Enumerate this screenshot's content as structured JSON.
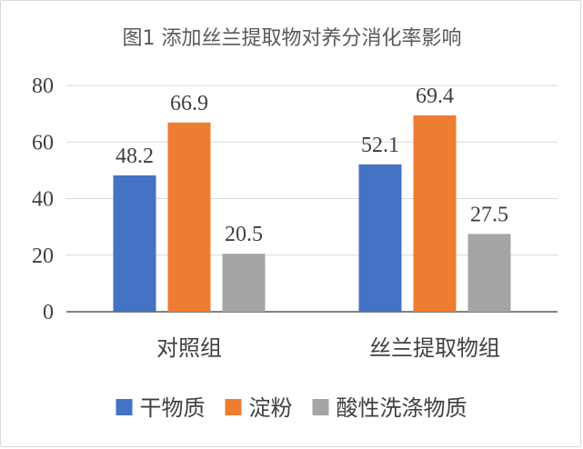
{
  "chart_data": {
    "type": "bar",
    "title": "图1 添加丝兰提取物对养分消化率影响",
    "categories": [
      "对照组",
      "丝兰提取物组"
    ],
    "series": [
      {
        "name": "干物质",
        "values": [
          48.2,
          52.1
        ],
        "color": "#4472C4"
      },
      {
        "name": "淀粉",
        "values": [
          66.9,
          69.4
        ],
        "color": "#ED7D31"
      },
      {
        "name": "酸性洗涤物质",
        "values": [
          20.5,
          27.5
        ],
        "color": "#A5A5A5"
      }
    ],
    "ylim": [
      0,
      80
    ],
    "yticks": [
      0,
      20,
      40,
      60,
      80
    ],
    "xlabel": "",
    "ylabel": "",
    "grid": true,
    "legend": "bottom",
    "data_labels": true
  }
}
